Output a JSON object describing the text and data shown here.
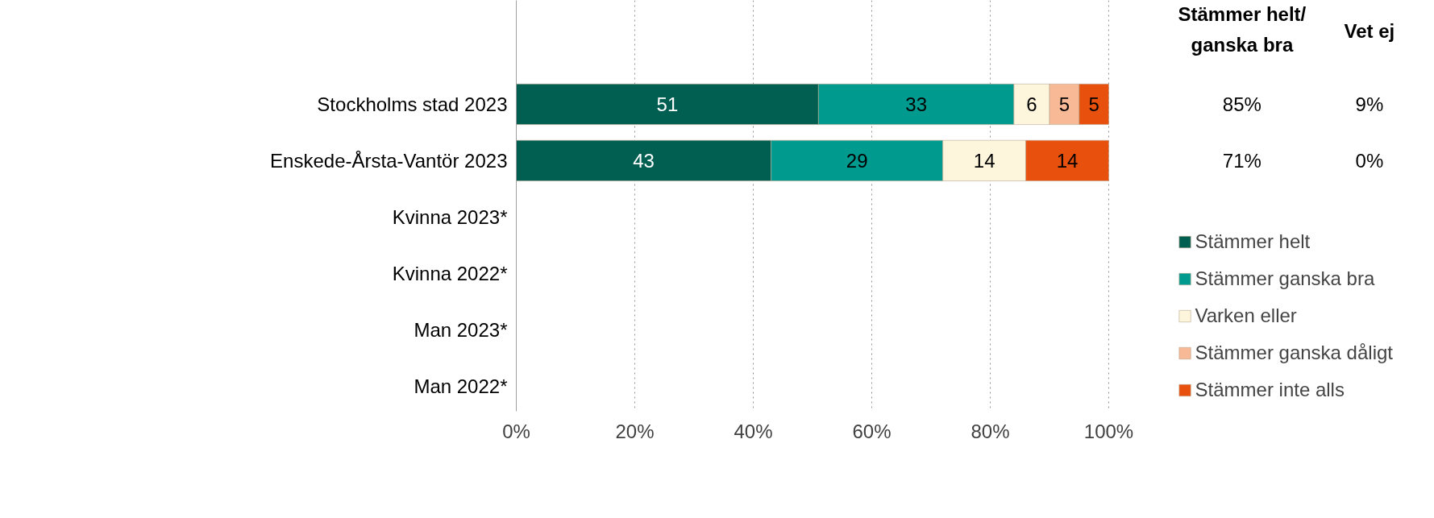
{
  "chart_data": {
    "type": "bar",
    "orientation": "horizontal",
    "stacked": true,
    "categories": [
      "Stockholms stad 2023",
      "Enskede-Årsta-Vantör 2023",
      "Kvinna 2023*",
      "Kvinna 2022*",
      "Man 2023*",
      "Man 2022*"
    ],
    "series": [
      {
        "name": "Stämmer helt",
        "color": "#005f50",
        "values": [
          51,
          43,
          null,
          null,
          null,
          null
        ]
      },
      {
        "name": "Stämmer ganska bra",
        "color": "#009a8f",
        "values": [
          33,
          29,
          null,
          null,
          null,
          null
        ]
      },
      {
        "name": "Varken eller",
        "color": "#fdf5dc",
        "values": [
          6,
          14,
          null,
          null,
          null,
          null
        ]
      },
      {
        "name": "Stämmer ganska dåligt",
        "color": "#f7b996",
        "values": [
          5,
          null,
          null,
          null,
          null,
          null
        ]
      },
      {
        "name": "Stämmer inte alls",
        "color": "#e8500e",
        "values": [
          5,
          14,
          null,
          null,
          null,
          null
        ]
      }
    ],
    "xlim": [
      0,
      100
    ],
    "xticks": [
      {
        "value": 0,
        "label": "0%"
      },
      {
        "value": 20,
        "label": "20%"
      },
      {
        "value": 40,
        "label": "40%"
      },
      {
        "value": 60,
        "label": "60%"
      },
      {
        "value": 80,
        "label": "80%"
      },
      {
        "value": 100,
        "label": "100%"
      }
    ],
    "grid": "x",
    "legend": "bottom right",
    "data_labels": true,
    "annotations": [
      "Stämmer helt/\nganska bra",
      "Vet ej",
      "85%",
      "9%",
      "71%",
      "0%"
    ]
  }
}
